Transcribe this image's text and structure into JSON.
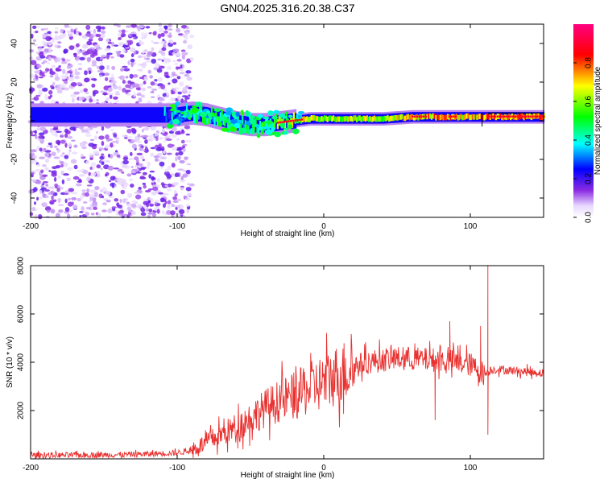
{
  "figure_title": "GN04.2025.316.20.38.C37",
  "chart_data": [
    {
      "type": "heatmap",
      "title": "GN04.2025.316.20.38.C37",
      "xlabel": "Height of straight line (km)",
      "ylabel": "Frequency (Hz)",
      "xlim": [
        -200,
        150
      ],
      "ylim": [
        -50,
        50
      ],
      "xticks": [
        -200,
        -100,
        0,
        100
      ],
      "yticks": [
        -40,
        -20,
        0,
        20,
        40
      ],
      "colorbar": {
        "label": "Normalized spectral amplitude",
        "range": [
          0,
          1
        ],
        "ticks": [
          "0.0",
          "0.2",
          "0.4",
          "0.6",
          "0.8"
        ],
        "tick_values": [
          0.0,
          0.2,
          0.4,
          0.6,
          0.8
        ],
        "colors": [
          "#ffffff",
          "#8a2be2",
          "#0000ff",
          "#00ffff",
          "#00ff00",
          "#ffff00",
          "#ff0000",
          "#ff0080"
        ]
      },
      "ridge": [
        {
          "x": -200,
          "y": 3,
          "amp": 0.2
        },
        {
          "x": -120,
          "y": 3,
          "amp": 0.2
        },
        {
          "x": -100,
          "y": 3,
          "amp": 0.3
        },
        {
          "x": -90,
          "y": 4,
          "amp": 0.4
        },
        {
          "x": -80,
          "y": 3,
          "amp": 0.45
        },
        {
          "x": -70,
          "y": 1,
          "amp": 0.45
        },
        {
          "x": -60,
          "y": -1,
          "amp": 0.45
        },
        {
          "x": -50,
          "y": -2,
          "amp": 0.45
        },
        {
          "x": -40,
          "y": -2,
          "amp": 0.5
        },
        {
          "x": -30,
          "y": -1,
          "amp": 0.6
        },
        {
          "x": -20,
          "y": 0,
          "amp": 0.7
        },
        {
          "x": -10,
          "y": 1,
          "amp": 0.75
        },
        {
          "x": 0,
          "y": 1,
          "amp": 0.7
        },
        {
          "x": 20,
          "y": 1,
          "amp": 0.7
        },
        {
          "x": 40,
          "y": 1,
          "amp": 0.72
        },
        {
          "x": 60,
          "y": 2,
          "amp": 0.8
        },
        {
          "x": 80,
          "y": 2,
          "amp": 0.85
        },
        {
          "x": 100,
          "y": 2,
          "amp": 0.8
        },
        {
          "x": 110,
          "y": 2,
          "amp": 0.9
        },
        {
          "x": 130,
          "y": 2,
          "amp": 0.9
        },
        {
          "x": 150,
          "y": 2,
          "amp": 0.9
        }
      ]
    },
    {
      "type": "line",
      "xlabel": "Height of straight line (km)",
      "ylabel": "SNR (10 * v/v)",
      "xlim": [
        -200,
        150
      ],
      "ylim": [
        0,
        8000
      ],
      "xticks": [
        -200,
        -100,
        0,
        100
      ],
      "yticks": [
        2000,
        4000,
        6000,
        8000
      ],
      "color": "#e8302e",
      "series": [
        {
          "name": "SNR",
          "x": [
            -200,
            -180,
            -160,
            -140,
            -120,
            -100,
            -90,
            -80,
            -70,
            -60,
            -50,
            -40,
            -30,
            -20,
            -10,
            0,
            10,
            20,
            30,
            40,
            50,
            60,
            70,
            80,
            90,
            100,
            105,
            110,
            112,
            115,
            120,
            130,
            140,
            150
          ],
          "y": [
            150,
            150,
            160,
            170,
            200,
            250,
            350,
            700,
            1000,
            1300,
            1700,
            2100,
            2400,
            2600,
            2900,
            3200,
            3500,
            3800,
            4000,
            4100,
            4150,
            4150,
            4100,
            4100,
            4000,
            3900,
            3700,
            3500,
            3600,
            3700,
            3700,
            3650,
            3600,
            3550
          ]
        }
      ],
      "annotations": [
        {
          "x": 112,
          "y": 8000,
          "type": "spike"
        },
        {
          "x": 112,
          "y": 1000,
          "type": "dip"
        },
        {
          "x": 86,
          "y": 5700,
          "type": "spike"
        },
        {
          "x": 76,
          "y": 1600,
          "type": "dip"
        },
        {
          "x": 107,
          "y": 5500,
          "type": "spike"
        }
      ]
    }
  ]
}
